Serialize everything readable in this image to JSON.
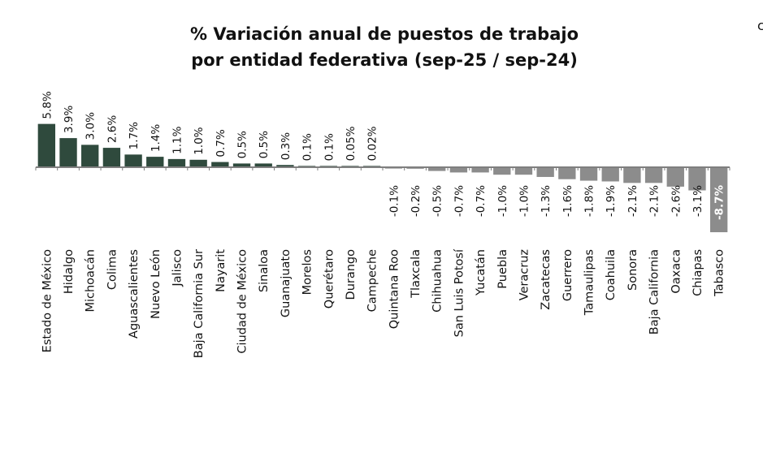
{
  "header": {
    "title_line1": "% Variación anual de puestos de trabajo",
    "title_line2": "por entidad federativa (sep-25 / sep-24)",
    "corner_glyph": "c"
  },
  "colors": {
    "positive": "#2f4a3d",
    "negative": "#8c8c8c",
    "axis": "#7f7f7f"
  },
  "chart_data": {
    "type": "bar",
    "title": "% Variación anual de puestos de trabajo por entidad federativa (sep-25 / sep-24)",
    "xlabel": "",
    "ylabel": "",
    "unit": "%",
    "categories": [
      "Estado de México",
      "Hidalgo",
      "Michoacán",
      "Colima",
      "Aguascalientes",
      "Nuevo León",
      "Jalisco",
      "Baja California Sur",
      "Nayarit",
      "Ciudad de México",
      "Sinaloa",
      "Guanajuato",
      "Morelos",
      "Querétaro",
      "Durango",
      "Campeche",
      "Quintana Roo",
      "Tlaxcala",
      "Chihuahua",
      "San Luis Potosí",
      "Yucatán",
      "Puebla",
      "Veracruz",
      "Zacatecas",
      "Guerrero",
      "Tamaulipas",
      "Coahuila",
      "Sonora",
      "Baja California",
      "Oaxaca",
      "Chiapas",
      "Tabasco"
    ],
    "values": [
      5.8,
      3.9,
      3.0,
      2.6,
      1.7,
      1.4,
      1.1,
      1.0,
      0.7,
      0.5,
      0.5,
      0.3,
      0.1,
      0.1,
      0.05,
      0.02,
      -0.1,
      -0.2,
      -0.5,
      -0.7,
      -0.7,
      -1.0,
      -1.0,
      -1.3,
      -1.6,
      -1.8,
      -1.9,
      -2.1,
      -2.1,
      -2.6,
      -3.1,
      -8.7
    ],
    "labels": [
      "5.8%",
      "3.9%",
      "3.0%",
      "2.6%",
      "1.7%",
      "1.4%",
      "1.1%",
      "1.0%",
      "0.7%",
      "0.5%",
      "0.5%",
      "0.3%",
      "0.1%",
      "0.1%",
      "0.05%",
      "0.02%",
      "-0.1%",
      "-0.2%",
      "-0.5%",
      "-0.7%",
      "-0.7%",
      "-1.0%",
      "-1.0%",
      "-1.3%",
      "-1.6%",
      "-1.8%",
      "-1.9%",
      "-2.1%",
      "-2.1%",
      "-2.6%",
      "-3.1%",
      "-8.7%"
    ],
    "grid": false,
    "legend": "none"
  }
}
